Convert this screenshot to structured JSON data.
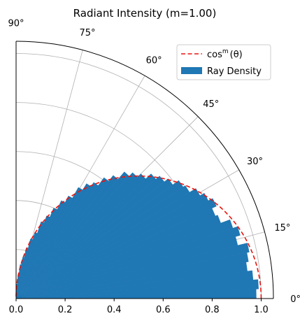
{
  "chart_data": {
    "type": "bar",
    "projection": "polar-quarter",
    "title": "Radiant Intensity (m=1.00)",
    "radial_axis": {
      "min": 0.0,
      "max": 1.05,
      "ticks": [
        0.0,
        0.2,
        0.4,
        0.6,
        0.8,
        1.0
      ],
      "tick_labels": [
        "0.0",
        "0.2",
        "0.4",
        "0.6",
        "0.8",
        "1.0"
      ]
    },
    "angular_axis": {
      "unit": "degrees",
      "min": 0,
      "max": 90,
      "ticks": [
        0,
        15,
        30,
        45,
        60,
        75,
        90
      ],
      "tick_labels": [
        "0°",
        "15°",
        "30°",
        "45°",
        "60°",
        "75°",
        "90°"
      ]
    },
    "grid": true,
    "legend": {
      "position": "top-right",
      "entries": [
        {
          "label": "cos",
          "label_sup": "m",
          "label_tail": "(θ)",
          "style": "dashed-line",
          "color": "#e8150e"
        },
        {
          "label": "Ray Density",
          "style": "patch",
          "color": "#1f77b4"
        }
      ]
    },
    "bars": {
      "name": "Ray Density",
      "color": "#1f77b4",
      "bin_width_deg": 2.25,
      "angles_deg": [
        1.125,
        3.375,
        5.625,
        7.875,
        10.125,
        12.375,
        14.625,
        16.875,
        19.125,
        21.375,
        23.625,
        25.875,
        28.125,
        30.375,
        32.625,
        34.875,
        37.125,
        39.375,
        41.625,
        43.875,
        46.125,
        48.375,
        50.625,
        52.875,
        55.125,
        57.375,
        59.625,
        61.875,
        64.125,
        66.375,
        68.625,
        70.875,
        73.125,
        75.375,
        77.625,
        79.875,
        82.125,
        84.375,
        86.625,
        88.875
      ],
      "values": [
        0.98,
        0.99,
        0.97,
        0.95,
        0.96,
        0.97,
        0.93,
        0.95,
        0.93,
        0.89,
        0.88,
        0.9,
        0.88,
        0.86,
        0.83,
        0.82,
        0.79,
        0.77,
        0.75,
        0.72,
        0.7,
        0.68,
        0.64,
        0.61,
        0.57,
        0.55,
        0.52,
        0.47,
        0.44,
        0.4,
        0.36,
        0.33,
        0.28,
        0.25,
        0.21,
        0.17,
        0.14,
        0.1,
        0.06,
        0.02
      ]
    },
    "reference_curve": {
      "name": "cos^m(θ)",
      "m": 1.0,
      "style": "dashed",
      "color": "#e8150e"
    }
  }
}
